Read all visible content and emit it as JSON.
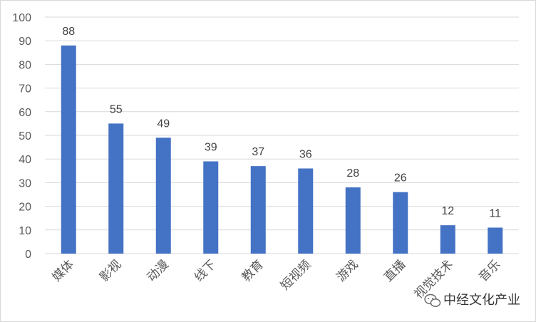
{
  "chart_data": {
    "type": "bar",
    "categories": [
      "媒体",
      "影视",
      "动漫",
      "线下",
      "教育",
      "短视频",
      "游戏",
      "直播",
      "视觉技术",
      "音乐"
    ],
    "values": [
      88,
      55,
      49,
      39,
      37,
      36,
      28,
      26,
      12,
      11
    ],
    "yticks": [
      "0",
      "10",
      "20",
      "30",
      "40",
      "50",
      "60",
      "70",
      "80",
      "90",
      "100"
    ],
    "ylim": [
      0,
      100
    ],
    "grid": true,
    "bar_color": "#4472c4",
    "title": "",
    "xlabel": "",
    "ylabel": ""
  },
  "watermark": {
    "text": "中经文化产业",
    "icon": "wechat-icon"
  }
}
